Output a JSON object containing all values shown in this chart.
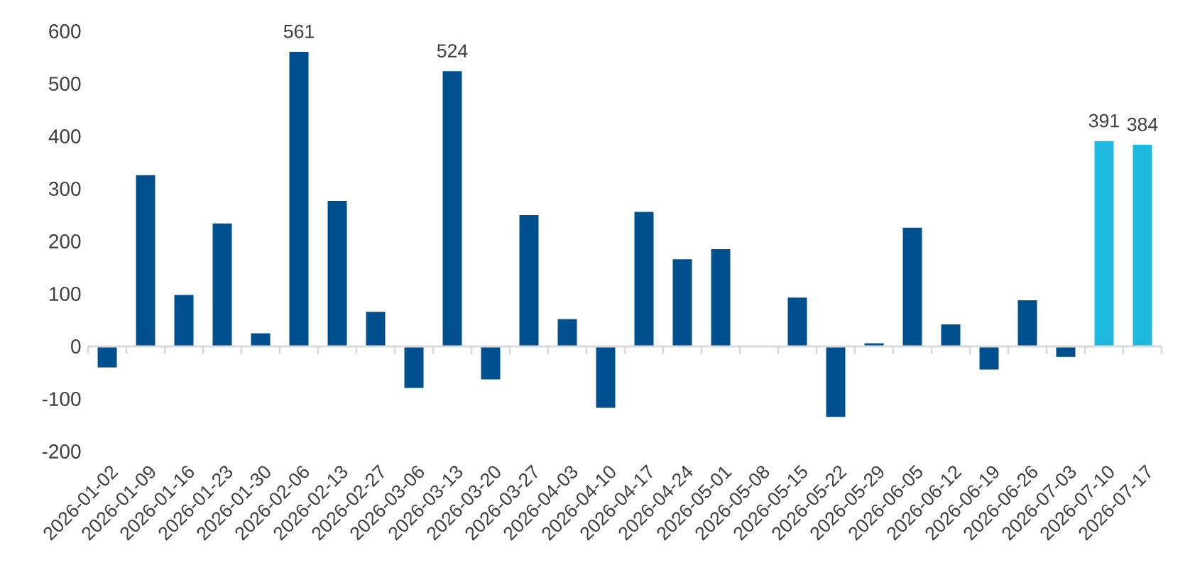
{
  "chart_data": {
    "type": "bar",
    "categories": [
      "2026-01-02",
      "2026-01-09",
      "2026-01-16",
      "2026-01-23",
      "2026-01-30",
      "2026-02-06",
      "2026-02-13",
      "2026-02-27",
      "2026-03-06",
      "2026-03-13",
      "2026-03-20",
      "2026-03-27",
      "2026-04-03",
      "2026-04-10",
      "2026-04-17",
      "2026-04-24",
      "2026-05-01",
      "2026-05-08",
      "2026-05-15",
      "2026-05-22",
      "2026-05-29",
      "2026-06-05",
      "2026-06-12",
      "2026-06-19",
      "2026-06-26",
      "2026-07-03",
      "2026-07-10",
      "2026-07-17"
    ],
    "values": [
      -40,
      326,
      98,
      234,
      25,
      561,
      277,
      66,
      -79,
      524,
      -63,
      250,
      52,
      -117,
      256,
      166,
      185,
      null,
      93,
      -134,
      6,
      226,
      42,
      -44,
      88,
      -20,
      391,
      384
    ],
    "colors": [
      "#00508f",
      "#00508f",
      "#00508f",
      "#00508f",
      "#00508f",
      "#00508f",
      "#00508f",
      "#00508f",
      "#00508f",
      "#00508f",
      "#00508f",
      "#00508f",
      "#00508f",
      "#00508f",
      "#00508f",
      "#00508f",
      "#00508f",
      "#00508f",
      "#00508f",
      "#00508f",
      "#00508f",
      "#00508f",
      "#00508f",
      "#00508f",
      "#00508f",
      "#00508f",
      "#1fb8e0",
      "#1fb8e0"
    ],
    "value_labels": [
      null,
      null,
      null,
      null,
      null,
      "561",
      null,
      null,
      null,
      "524",
      null,
      null,
      null,
      null,
      null,
      null,
      null,
      null,
      null,
      null,
      null,
      null,
      null,
      null,
      null,
      null,
      "391",
      "384"
    ],
    "ylim": [
      -200,
      600
    ],
    "yticks": [
      -200,
      -100,
      0,
      100,
      200,
      300,
      400,
      500,
      600
    ]
  }
}
